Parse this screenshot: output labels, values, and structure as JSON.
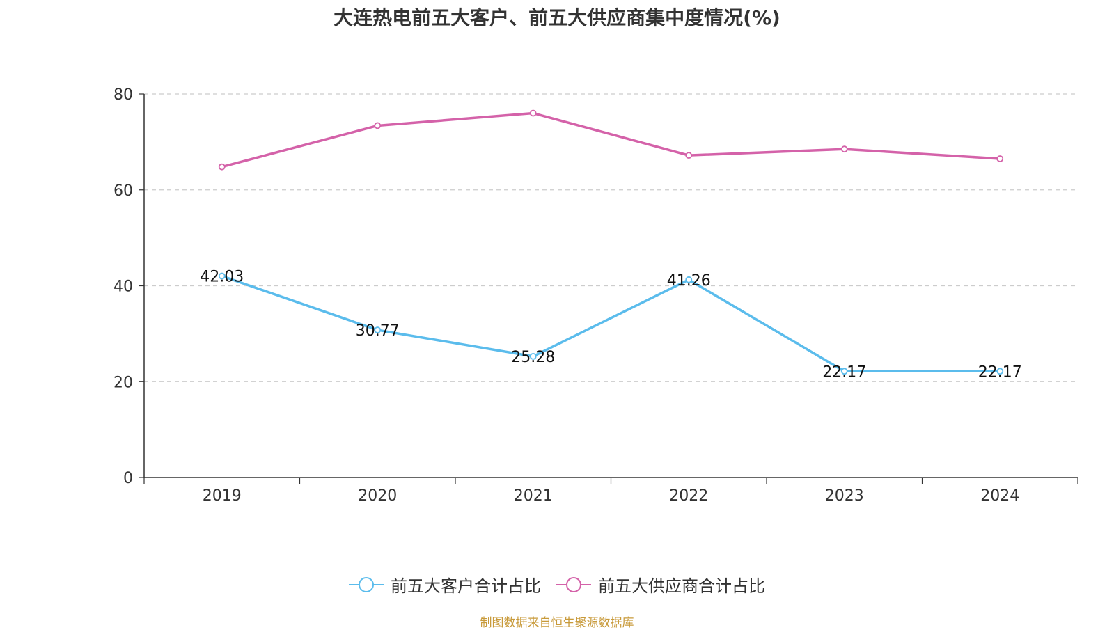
{
  "chart_data": {
    "type": "line",
    "title": "大连热电前五大客户、前五大供应商集中度情况(%)",
    "categories": [
      "2019",
      "2020",
      "2021",
      "2022",
      "2023",
      "2024"
    ],
    "series": [
      {
        "name": "前五大客户合计占比",
        "values": [
          42.03,
          30.77,
          25.28,
          41.26,
          22.17,
          22.17
        ],
        "color": "#5bbcec",
        "show_labels": true
      },
      {
        "name": "前五大供应商合计占比",
        "values": [
          64.8,
          73.4,
          76.0,
          67.2,
          68.5,
          66.5
        ],
        "color": "#d462a9",
        "show_labels": false
      }
    ],
    "y_ticks": [
      0,
      20,
      40,
      60,
      80
    ],
    "ylim": [
      0,
      80
    ],
    "grid": true,
    "legend_position": "bottom"
  },
  "source": "制图数据来自恒生聚源数据库"
}
